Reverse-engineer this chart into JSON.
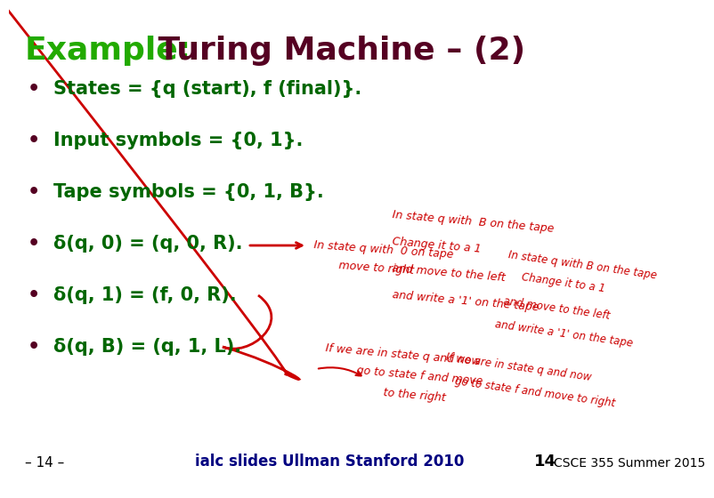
{
  "title_example": "Example:",
  "title_rest": " Turing Machine – (2)",
  "title_example_color": "#22aa00",
  "title_rest_color": "#550022",
  "title_fontsize": 26,
  "bullet_color": "#006600",
  "bullet_fontsize": 15,
  "bullet_dot_color": "#550022",
  "bullets": [
    "States = {q (start), f (final)}.",
    "Input symbols = {0, 1}.",
    "Tape symbols = {0, 1, B}.",
    "δ(q, 0) = (q, 0, R).",
    "δ(q, 1) = (f, 0, R).",
    "δ(q, B) = (q, 1, L)."
  ],
  "footer_left": "– 14 –",
  "footer_center": "ialc slides Ullman Stanford 2010",
  "footer_right_num": "14",
  "footer_right_text": "CSCE 355 Summer 2015",
  "footer_center_color": "#000080",
  "footer_fontsize": 11,
  "bg_color": "#ffffff",
  "handwrite_color": "#cc0000"
}
